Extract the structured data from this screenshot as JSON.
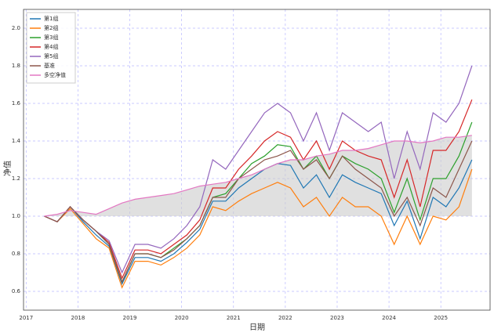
{
  "chart_data": {
    "type": "line",
    "x_label": "日期",
    "y_label": "净值",
    "x": [
      2017.35,
      2017.6,
      2017.85,
      2018.1,
      2018.35,
      2018.6,
      2018.85,
      2019.1,
      2019.35,
      2019.6,
      2019.85,
      2020.1,
      2020.35,
      2020.6,
      2020.85,
      2021.1,
      2021.35,
      2021.6,
      2021.85,
      2022.1,
      2022.35,
      2022.6,
      2022.85,
      2023.1,
      2023.35,
      2023.6,
      2023.85,
      2024.1,
      2024.35,
      2024.6,
      2024.85,
      2025.1,
      2025.35,
      2025.6
    ],
    "series": [
      {
        "name": "第1组",
        "color": "#1f77b4",
        "values": [
          1.0,
          0.97,
          1.05,
          0.97,
          0.9,
          0.84,
          0.64,
          0.78,
          0.78,
          0.76,
          0.8,
          0.86,
          0.93,
          1.08,
          1.08,
          1.15,
          1.2,
          1.25,
          1.28,
          1.27,
          1.15,
          1.22,
          1.1,
          1.22,
          1.18,
          1.15,
          1.12,
          0.95,
          1.08,
          0.88,
          1.1,
          1.05,
          1.15,
          1.3
        ]
      },
      {
        "name": "第2组",
        "color": "#ff7f0e",
        "values": [
          1.0,
          0.97,
          1.04,
          0.96,
          0.88,
          0.83,
          0.62,
          0.76,
          0.76,
          0.74,
          0.78,
          0.83,
          0.9,
          1.05,
          1.03,
          1.08,
          1.12,
          1.15,
          1.18,
          1.15,
          1.05,
          1.1,
          1.0,
          1.1,
          1.05,
          1.05,
          1.0,
          0.85,
          1.0,
          0.85,
          1.0,
          0.98,
          1.05,
          1.25
        ]
      },
      {
        "name": "第3组",
        "color": "#2ca02c",
        "values": [
          1.0,
          0.97,
          1.05,
          0.98,
          0.92,
          0.85,
          0.65,
          0.8,
          0.8,
          0.78,
          0.83,
          0.88,
          0.95,
          1.1,
          1.12,
          1.2,
          1.28,
          1.32,
          1.38,
          1.37,
          1.25,
          1.32,
          1.2,
          1.32,
          1.28,
          1.25,
          1.2,
          1.02,
          1.2,
          0.98,
          1.2,
          1.2,
          1.32,
          1.5
        ]
      },
      {
        "name": "第4组",
        "color": "#d62728",
        "values": [
          1.0,
          0.97,
          1.05,
          0.98,
          0.92,
          0.86,
          0.67,
          0.82,
          0.82,
          0.8,
          0.85,
          0.9,
          0.98,
          1.15,
          1.15,
          1.25,
          1.32,
          1.4,
          1.45,
          1.42,
          1.3,
          1.4,
          1.25,
          1.4,
          1.35,
          1.32,
          1.3,
          1.1,
          1.3,
          1.05,
          1.35,
          1.35,
          1.45,
          1.62
        ]
      },
      {
        "name": "第5组",
        "color": "#9467bd",
        "values": [
          1.0,
          0.97,
          1.05,
          0.98,
          0.92,
          0.87,
          0.7,
          0.85,
          0.85,
          0.83,
          0.88,
          0.95,
          1.05,
          1.3,
          1.25,
          1.35,
          1.45,
          1.55,
          1.6,
          1.55,
          1.4,
          1.55,
          1.35,
          1.55,
          1.5,
          1.45,
          1.5,
          1.2,
          1.45,
          1.25,
          1.55,
          1.5,
          1.6,
          1.8
        ]
      },
      {
        "name": "基准",
        "color": "#8c564b",
        "values": [
          1.0,
          0.97,
          1.05,
          0.98,
          0.92,
          0.85,
          0.65,
          0.8,
          0.8,
          0.78,
          0.82,
          0.88,
          0.95,
          1.1,
          1.1,
          1.2,
          1.25,
          1.3,
          1.32,
          1.35,
          1.25,
          1.3,
          1.2,
          1.32,
          1.25,
          1.2,
          1.15,
          1.0,
          1.1,
          0.95,
          1.15,
          1.1,
          1.25,
          1.4
        ]
      },
      {
        "name": "多空净值",
        "color": "#e377c2",
        "fill": "#cccccc",
        "values": [
          1.0,
          1.01,
          1.03,
          1.02,
          1.01,
          1.04,
          1.07,
          1.09,
          1.1,
          1.11,
          1.12,
          1.14,
          1.16,
          1.17,
          1.18,
          1.2,
          1.22,
          1.25,
          1.28,
          1.3,
          1.3,
          1.32,
          1.33,
          1.35,
          1.35,
          1.36,
          1.38,
          1.4,
          1.4,
          1.39,
          1.4,
          1.42,
          1.42,
          1.43
        ]
      }
    ],
    "xlim": [
      2016.95,
      2025.95
    ],
    "xticks": [
      2017,
      2018,
      2019,
      2020,
      2021,
      2022,
      2023,
      2024,
      2025
    ],
    "ylim": [
      0.5,
      2.1
    ],
    "yticks": [
      0.6,
      0.8,
      {
        "value": 1,
        "label": "1.0"
      },
      1.2,
      1.4,
      1.6,
      1.8,
      {
        "value": 2,
        "label": "2.0"
      }
    ],
    "fill_base": 1,
    "grid": true,
    "legend": "upper-left"
  }
}
